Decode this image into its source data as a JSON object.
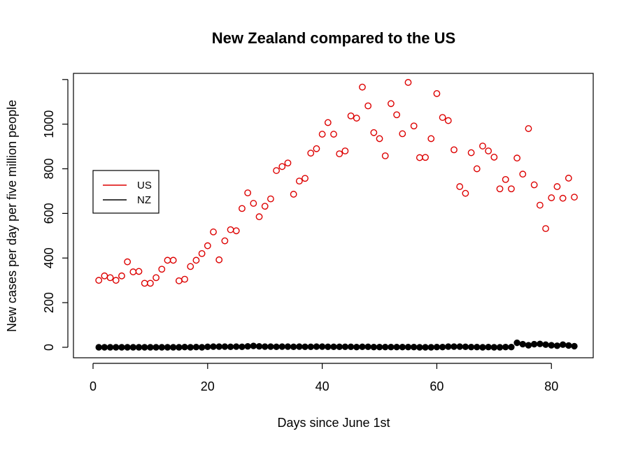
{
  "chart_data": {
    "type": "scatter",
    "title": "New Zealand compared to the US",
    "xlabel": "Days since June 1st",
    "ylabel": "New cases per day per five million people",
    "xlim": [
      1,
      84
    ],
    "ylim": [
      0,
      1190
    ],
    "x_ticks": [
      "0",
      "20",
      "40",
      "60",
      "80"
    ],
    "y_ticks": [
      "0",
      "200",
      "400",
      "600",
      "800",
      "1000"
    ],
    "grid": false,
    "legend": {
      "position": "left",
      "entries": [
        {
          "label": "US",
          "color": "#dd0000"
        },
        {
          "label": "NZ",
          "color": "#000000"
        }
      ]
    },
    "series": [
      {
        "name": "US",
        "color": "#dd0000",
        "marker": "open-circle",
        "x": [
          1,
          2,
          3,
          4,
          5,
          6,
          7,
          8,
          9,
          10,
          11,
          12,
          13,
          14,
          15,
          16,
          17,
          18,
          19,
          20,
          21,
          22,
          23,
          24,
          25,
          26,
          27,
          28,
          29,
          30,
          31,
          32,
          33,
          34,
          35,
          36,
          37,
          38,
          39,
          40,
          41,
          42,
          43,
          44,
          45,
          46,
          47,
          48,
          49,
          50,
          51,
          52,
          53,
          54,
          55,
          56,
          57,
          58,
          59,
          60,
          61,
          62,
          63,
          64,
          65,
          66,
          67,
          68,
          69,
          70,
          71,
          72,
          73,
          74,
          75,
          76,
          77,
          78,
          79,
          80,
          81,
          82,
          83,
          84
        ],
        "y": [
          300,
          320,
          312,
          300,
          320,
          383,
          338,
          340,
          287,
          287,
          312,
          350,
          390,
          390,
          298,
          305,
          362,
          390,
          420,
          455,
          517,
          392,
          477,
          527,
          522,
          622,
          692,
          645,
          585,
          632,
          665,
          792,
          810,
          826,
          686,
          745,
          757,
          870,
          890,
          955,
          1007,
          955,
          867,
          880,
          1037,
          1027,
          1166,
          1082,
          962,
          935,
          858,
          1092,
          1042,
          957,
          1187,
          992,
          850,
          851,
          935,
          1137,
          1030,
          1016,
          885,
          720,
          690,
          872,
          800,
          902,
          880,
          852,
          710,
          752,
          710,
          848,
          776,
          980,
          728,
          637,
          532,
          670,
          720,
          668,
          758,
          673
        ]
      },
      {
        "name": "NZ",
        "color": "#000000",
        "marker": "filled-circle",
        "x": [
          1,
          2,
          3,
          4,
          5,
          6,
          7,
          8,
          9,
          10,
          11,
          12,
          13,
          14,
          15,
          16,
          17,
          18,
          19,
          20,
          21,
          22,
          23,
          24,
          25,
          26,
          27,
          28,
          29,
          30,
          31,
          32,
          33,
          34,
          35,
          36,
          37,
          38,
          39,
          40,
          41,
          42,
          43,
          44,
          45,
          46,
          47,
          48,
          49,
          50,
          51,
          52,
          53,
          54,
          55,
          56,
          57,
          58,
          59,
          60,
          61,
          62,
          63,
          64,
          65,
          66,
          67,
          68,
          69,
          70,
          71,
          72,
          73,
          74,
          75,
          76,
          77,
          78,
          79,
          80,
          81,
          82,
          83,
          84
        ],
        "y": [
          0,
          0,
          0,
          0,
          0,
          0,
          0,
          0,
          0,
          0,
          0,
          0,
          0,
          0,
          0,
          1,
          0,
          1,
          0,
          2,
          3,
          3,
          3,
          2,
          3,
          2,
          4,
          6,
          4,
          3,
          3,
          2,
          3,
          3,
          2,
          3,
          2,
          2,
          3,
          3,
          2,
          2,
          2,
          2,
          2,
          1,
          2,
          2,
          1,
          1,
          1,
          1,
          1,
          1,
          1,
          1,
          0,
          0,
          0,
          1,
          1,
          3,
          3,
          3,
          2,
          1,
          1,
          0,
          1,
          0,
          0,
          1,
          1,
          20,
          14,
          9,
          14,
          15,
          12,
          9,
          7,
          12,
          8,
          5
        ]
      }
    ]
  }
}
